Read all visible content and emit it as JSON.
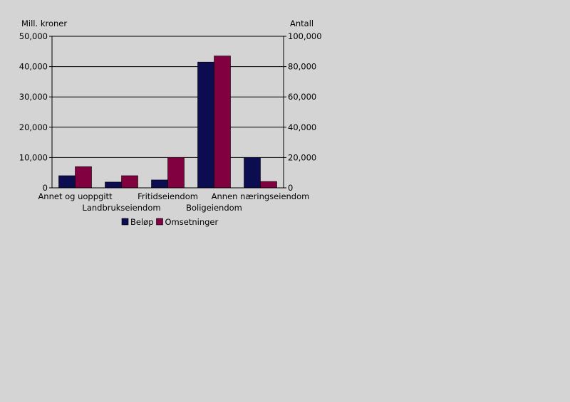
{
  "chart_data": {
    "type": "bar",
    "categories": [
      "Annet og uoppgitt",
      "Landbrukseiendom",
      "Fritidseiendom",
      "Boligeiendom",
      "Annen næringseiendom"
    ],
    "series": [
      {
        "name": "Beløp",
        "axis": "left",
        "color": "#0c0c50",
        "values": [
          4000,
          1900,
          2600,
          41500,
          10000
        ]
      },
      {
        "name": "Omsetninger",
        "axis": "right",
        "color": "#800040",
        "values": [
          14000,
          8000,
          20000,
          87000,
          4200
        ]
      }
    ],
    "ylabel": "Mill. kroner",
    "y2label": "Antall",
    "ylim": [
      0,
      50000
    ],
    "y2lim": [
      0,
      100000
    ],
    "yticks": [
      "0",
      "10,000",
      "20,000",
      "30,000",
      "40,000",
      "50,000"
    ],
    "y2ticks": [
      "0",
      "20,000",
      "40,000",
      "60,000",
      "80,000",
      "100,000"
    ],
    "grid": true,
    "legend": "bottom"
  }
}
